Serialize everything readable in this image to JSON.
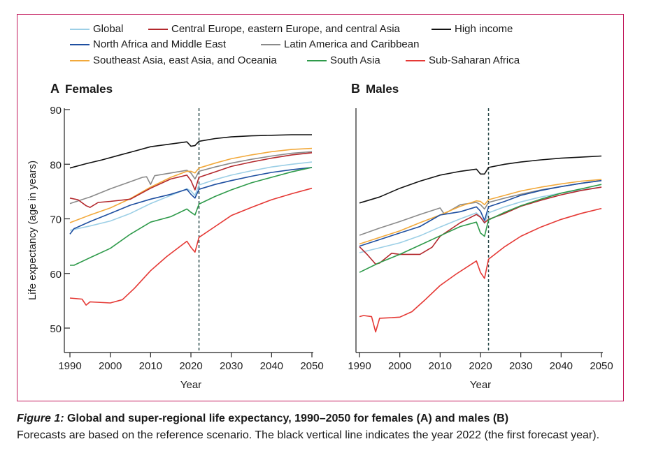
{
  "legend": [
    {
      "label": "Global",
      "color": "#9ccfe6"
    },
    {
      "label": "Central Europe, eastern Europe, and central Asia",
      "color": "#b3282d"
    },
    {
      "label": "High income",
      "color": "#111111"
    },
    {
      "label": "North Africa and Middle East",
      "color": "#1f4fa0"
    },
    {
      "label": "Latin America and Caribbean",
      "color": "#8a8a8a"
    },
    {
      "label": "Southeast Asia, east Asia, and Oceania",
      "color": "#f2a93b"
    },
    {
      "label": "South Asia",
      "color": "#2e9a4a"
    },
    {
      "label": "Sub-Saharan Africa",
      "color": "#e53935"
    }
  ],
  "panels": [
    {
      "letter": "A",
      "title": "Females"
    },
    {
      "letter": "B",
      "title": "Males"
    }
  ],
  "caption": {
    "fig_label": "Figure 1:",
    "title": "Global and super-regional life expectancy, 1990–2050 for females (A) and males (B)",
    "text": "Forecasts are based on the reference scenario. The black vertical line indicates the year 2022 (the first forecast year)."
  },
  "chart_data": [
    {
      "type": "line",
      "title": "Females",
      "xlabel": "Year",
      "ylabel": "Life expectancy (age in years)",
      "xlim": [
        1990,
        2050
      ],
      "ylim": [
        47,
        92
      ],
      "xticks": [
        1990,
        2000,
        2010,
        2020,
        2030,
        2040,
        2050
      ],
      "yticks": [
        50,
        60,
        70,
        80,
        90
      ],
      "vline": 2022,
      "series": [
        {
          "name": "High income",
          "color": "#111111",
          "x": [
            1990,
            1994,
            1998,
            2002,
            2006,
            2010,
            2014,
            2018,
            2019,
            2020,
            2021,
            2022,
            2026,
            2030,
            2035,
            2040,
            2045,
            2050
          ],
          "y": [
            79.3,
            80.1,
            80.8,
            81.6,
            82.4,
            83.2,
            83.6,
            84.0,
            84.1,
            83.3,
            83.4,
            84.2,
            84.7,
            85.0,
            85.2,
            85.3,
            85.4,
            85.4
          ]
        },
        {
          "name": "Latin America and Caribbean",
          "color": "#8a8a8a",
          "x": [
            1990,
            1995,
            2000,
            2005,
            2008,
            2009,
            2010,
            2011,
            2015,
            2019,
            2020,
            2021,
            2022,
            2026,
            2030,
            2035,
            2040,
            2045,
            2050
          ],
          "y": [
            72.8,
            74.0,
            75.5,
            76.8,
            77.6,
            77.7,
            76.3,
            77.9,
            78.4,
            78.9,
            78.4,
            77.3,
            78.7,
            79.5,
            80.2,
            80.9,
            81.5,
            82.0,
            82.3
          ]
        },
        {
          "name": "Southeast Asia, east Asia, and Oceania",
          "color": "#f2a93b",
          "x": [
            1990,
            1995,
            2000,
            2005,
            2010,
            2015,
            2019,
            2020,
            2021,
            2022,
            2026,
            2030,
            2035,
            2040,
            2045,
            2050
          ],
          "y": [
            69.3,
            70.7,
            72.0,
            73.7,
            75.8,
            77.6,
            78.7,
            78.7,
            78.4,
            79.3,
            80.2,
            81.0,
            81.7,
            82.3,
            82.7,
            82.9
          ]
        },
        {
          "name": "Central Europe, eastern Europe, and central Asia",
          "color": "#b3282d",
          "x": [
            1990,
            1992,
            1994,
            1995,
            1997,
            2000,
            2005,
            2010,
            2015,
            2019,
            2020,
            2021,
            2022,
            2026,
            2030,
            2035,
            2040,
            2045,
            2050
          ],
          "y": [
            73.8,
            73.5,
            72.4,
            72.1,
            73.0,
            73.2,
            73.6,
            75.6,
            77.3,
            78.0,
            77.0,
            75.3,
            77.6,
            78.6,
            79.6,
            80.4,
            81.1,
            81.7,
            82.1
          ]
        },
        {
          "name": "Global",
          "color": "#9ccfe6",
          "x": [
            1990,
            1995,
            2000,
            2005,
            2010,
            2015,
            2019,
            2020,
            2021,
            2022,
            2026,
            2030,
            2035,
            2040,
            2045,
            2050
          ],
          "y": [
            67.9,
            68.7,
            69.6,
            71.0,
            72.8,
            74.3,
            75.5,
            75.1,
            74.3,
            76.2,
            77.2,
            78.0,
            78.8,
            79.5,
            80.0,
            80.4
          ]
        },
        {
          "name": "North Africa and Middle East",
          "color": "#1f4fa0",
          "x": [
            1990,
            1991,
            1995,
            2000,
            2005,
            2010,
            2015,
            2019,
            2020,
            2021,
            2022,
            2026,
            2030,
            2035,
            2040,
            2045,
            2050
          ],
          "y": [
            67.2,
            68.2,
            69.5,
            71.0,
            72.5,
            73.6,
            74.5,
            75.4,
            74.5,
            73.8,
            75.4,
            76.3,
            77.0,
            77.8,
            78.5,
            79.0,
            79.4
          ]
        },
        {
          "name": "South Asia",
          "color": "#2e9a4a",
          "x": [
            1990,
            1991,
            1995,
            2000,
            2005,
            2010,
            2015,
            2019,
            2020,
            2021,
            2022,
            2026,
            2030,
            2035,
            2040,
            2045,
            2050
          ],
          "y": [
            61.5,
            61.5,
            62.9,
            64.6,
            67.2,
            69.4,
            70.4,
            71.8,
            71.2,
            70.7,
            72.7,
            74.1,
            75.3,
            76.6,
            77.6,
            78.6,
            79.4
          ]
        },
        {
          "name": "Sub-Saharan Africa",
          "color": "#e53935",
          "x": [
            1990,
            1993,
            1994,
            1995,
            2000,
            2003,
            2006,
            2010,
            2014,
            2019,
            2020,
            2021,
            2022,
            2026,
            2030,
            2035,
            2040,
            2045,
            2050
          ],
          "y": [
            55.5,
            55.3,
            54.2,
            54.8,
            54.6,
            55.2,
            57.3,
            60.5,
            63.1,
            65.9,
            64.8,
            63.9,
            66.6,
            68.6,
            70.6,
            72.1,
            73.5,
            74.6,
            75.6
          ]
        }
      ]
    },
    {
      "type": "line",
      "title": "Males",
      "xlabel": "Year",
      "ylabel": "",
      "xlim": [
        1990,
        2050
      ],
      "ylim": [
        47,
        92
      ],
      "xticks": [
        1990,
        2000,
        2010,
        2020,
        2030,
        2040,
        2050
      ],
      "yticks": [],
      "vline": 2022,
      "series": [
        {
          "name": "High income",
          "color": "#111111",
          "x": [
            1990,
            1995,
            2000,
            2005,
            2010,
            2015,
            2019,
            2020,
            2021,
            2022,
            2026,
            2030,
            2035,
            2040,
            2045,
            2050
          ],
          "y": [
            72.9,
            74.0,
            75.6,
            76.9,
            78.0,
            78.7,
            79.1,
            78.2,
            78.2,
            79.4,
            80.0,
            80.4,
            80.8,
            81.1,
            81.3,
            81.5
          ]
        },
        {
          "name": "Latin America and Caribbean",
          "color": "#8a8a8a",
          "x": [
            1990,
            1995,
            2000,
            2005,
            2010,
            2011,
            2015,
            2019,
            2020,
            2021,
            2022,
            2026,
            2030,
            2035,
            2040,
            2045,
            2050
          ],
          "y": [
            67.0,
            68.3,
            69.5,
            70.8,
            72.0,
            70.9,
            72.6,
            73.0,
            72.6,
            71.8,
            73.0,
            73.8,
            74.5,
            75.3,
            75.9,
            76.5,
            77.0
          ]
        },
        {
          "name": "Southeast Asia, east Asia, and Oceania",
          "color": "#f2a93b",
          "x": [
            1990,
            1995,
            2000,
            2005,
            2010,
            2015,
            2019,
            2020,
            2021,
            2022,
            2026,
            2030,
            2035,
            2040,
            2045,
            2050
          ],
          "y": [
            65.4,
            66.6,
            67.8,
            69.3,
            70.7,
            72.3,
            73.3,
            73.2,
            72.6,
            73.5,
            74.3,
            75.1,
            75.8,
            76.4,
            76.9,
            77.2
          ]
        },
        {
          "name": "North Africa and Middle East",
          "color": "#1f4fa0",
          "x": [
            1990,
            1995,
            2000,
            2005,
            2010,
            2015,
            2019,
            2020,
            2021,
            2022,
            2026,
            2030,
            2035,
            2040,
            2045,
            2050
          ],
          "y": [
            65.0,
            66.2,
            67.4,
            68.6,
            70.7,
            71.3,
            72.2,
            71.4,
            69.7,
            72.2,
            73.2,
            74.3,
            75.2,
            75.9,
            76.5,
            77.0
          ]
        },
        {
          "name": "Global",
          "color": "#9ccfe6",
          "x": [
            1990,
            1995,
            2000,
            2005,
            2010,
            2015,
            2019,
            2020,
            2021,
            2022,
            2026,
            2030,
            2035,
            2040,
            2045,
            2050
          ],
          "y": [
            63.8,
            64.7,
            65.6,
            66.9,
            68.5,
            70.0,
            71.1,
            70.4,
            69.2,
            71.1,
            72.2,
            73.1,
            74.0,
            74.7,
            75.3,
            75.8
          ]
        },
        {
          "name": "Central Europe, eastern Europe, and central Asia",
          "color": "#b3282d",
          "x": [
            1990,
            1992,
            1994,
            1995,
            1998,
            2000,
            2005,
            2008,
            2010,
            2015,
            2019,
            2020,
            2021,
            2022,
            2026,
            2030,
            2035,
            2040,
            2045,
            2050
          ],
          "y": [
            64.9,
            63.4,
            61.7,
            61.9,
            63.7,
            63.5,
            63.5,
            64.8,
            66.8,
            69.3,
            70.8,
            70.3,
            69.3,
            69.9,
            71.0,
            72.3,
            73.4,
            74.4,
            75.2,
            75.8
          ]
        },
        {
          "name": "South Asia",
          "color": "#2e9a4a",
          "x": [
            1990,
            1995,
            2000,
            2005,
            2010,
            2015,
            2019,
            2020,
            2021,
            2022,
            2026,
            2030,
            2035,
            2040,
            2045,
            2050
          ],
          "y": [
            60.2,
            62.0,
            63.5,
            65.2,
            66.9,
            68.6,
            69.4,
            67.4,
            66.8,
            69.8,
            71.2,
            72.4,
            73.6,
            74.7,
            75.5,
            76.3
          ]
        },
        {
          "name": "Sub-Saharan Africa",
          "color": "#e53935",
          "x": [
            1990,
            1991,
            1993,
            1994,
            1995,
            1998,
            2000,
            2003,
            2006,
            2010,
            2014,
            2019,
            2020,
            2021,
            2022,
            2026,
            2030,
            2035,
            2040,
            2045,
            2050
          ],
          "y": [
            52.1,
            52.3,
            52.1,
            49.3,
            51.8,
            51.9,
            52.0,
            53.0,
            55.0,
            57.8,
            59.9,
            62.3,
            60.2,
            59.1,
            62.6,
            64.9,
            66.8,
            68.5,
            69.9,
            71.0,
            71.9
          ]
        }
      ]
    }
  ]
}
